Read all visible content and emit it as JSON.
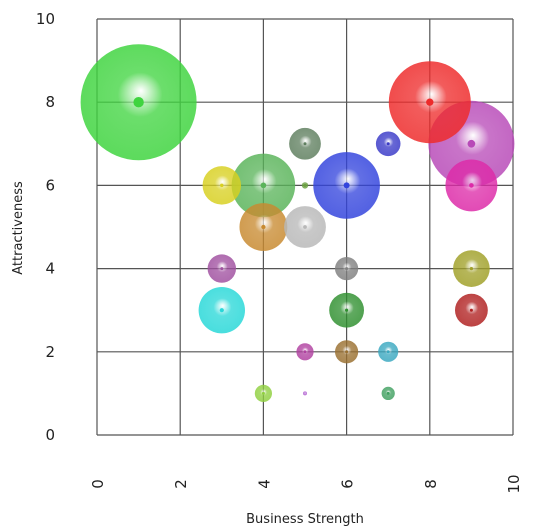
{
  "chart_data": {
    "type": "bubble",
    "title": "",
    "xlabel": "Business Strength",
    "ylabel": "Attractiveness",
    "xlim": [
      0,
      10
    ],
    "ylim": [
      0,
      10
    ],
    "xticks": [
      "0",
      "2",
      "4",
      "6",
      "8",
      "10"
    ],
    "yticks": [
      "0",
      "2",
      "4",
      "6",
      "8",
      "10"
    ],
    "grid": true,
    "legend": "none",
    "points": [
      {
        "x": 1,
        "y": 8,
        "size": 1.0,
        "color": "#3fd43f"
      },
      {
        "x": 8,
        "y": 8,
        "size": 0.5,
        "color": "#ee2b2b"
      },
      {
        "x": 9,
        "y": 7,
        "size": 0.55,
        "color": "#b84ab8"
      },
      {
        "x": 5,
        "y": 7,
        "size": 0.075,
        "color": "#5f7f5f"
      },
      {
        "x": 7,
        "y": 7,
        "size": 0.045,
        "color": "#3a3ac8"
      },
      {
        "x": 3,
        "y": 6,
        "size": 0.11,
        "color": "#d8d020"
      },
      {
        "x": 4,
        "y": 6,
        "size": 0.3,
        "color": "#5ab45a"
      },
      {
        "x": 5,
        "y": 6,
        "size": 0.003,
        "color": "#6aa040"
      },
      {
        "x": 6,
        "y": 6,
        "size": 0.33,
        "color": "#3344dd"
      },
      {
        "x": 9,
        "y": 6,
        "size": 0.2,
        "color": "#dd2aa8"
      },
      {
        "x": 4,
        "y": 5,
        "size": 0.17,
        "color": "#c88a30"
      },
      {
        "x": 5,
        "y": 5,
        "size": 0.13,
        "color": "#b8b8b8"
      },
      {
        "x": 3,
        "y": 4,
        "size": 0.06,
        "color": "#a050a0"
      },
      {
        "x": 6,
        "y": 4,
        "size": 0.04,
        "color": "#808080"
      },
      {
        "x": 9,
        "y": 4,
        "size": 0.1,
        "color": "#a0a028"
      },
      {
        "x": 3,
        "y": 3,
        "size": 0.16,
        "color": "#28d8d8"
      },
      {
        "x": 6,
        "y": 3,
        "size": 0.09,
        "color": "#309030"
      },
      {
        "x": 9,
        "y": 3,
        "size": 0.08,
        "color": "#b02020"
      },
      {
        "x": 5,
        "y": 2,
        "size": 0.022,
        "color": "#b040a0"
      },
      {
        "x": 6,
        "y": 2,
        "size": 0.04,
        "color": "#9a7030"
      },
      {
        "x": 7,
        "y": 2,
        "size": 0.03,
        "color": "#3aa8c0"
      },
      {
        "x": 4,
        "y": 1,
        "size": 0.022,
        "color": "#90d040"
      },
      {
        "x": 5,
        "y": 1,
        "size": 0.001,
        "color": "#b060d0"
      },
      {
        "x": 7,
        "y": 1,
        "size": 0.013,
        "color": "#40a060"
      }
    ]
  }
}
